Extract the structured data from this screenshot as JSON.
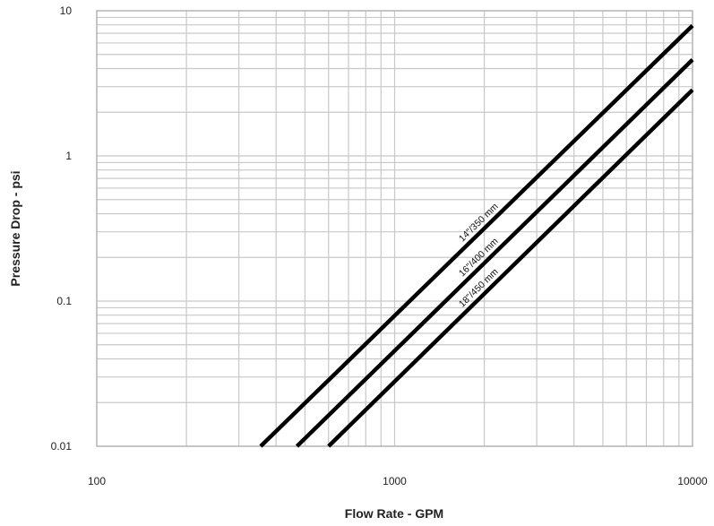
{
  "chart_data": {
    "type": "line",
    "x_scale": "log",
    "y_scale": "log",
    "xlim": [
      100,
      10000
    ],
    "ylim": [
      0.01,
      10
    ],
    "xlabel": "Flow Rate - GPM",
    "ylabel": "Pressure Drop - psi",
    "x_ticks": [
      "100",
      "1000",
      "10000"
    ],
    "y_ticks": [
      "0.01",
      "0.1",
      "1",
      "10"
    ],
    "grid": true,
    "line_color": "#000000",
    "grid_color": "#c8c8c8",
    "series": [
      {
        "name": "14\"/350 mm",
        "x": [
          355,
          10000
        ],
        "y": [
          0.01,
          7.9
        ]
      },
      {
        "name": "16\"/400 mm",
        "x": [
          470,
          10000
        ],
        "y": [
          0.01,
          4.6
        ]
      },
      {
        "name": "18\"/450 mm",
        "x": [
          600,
          10000
        ],
        "y": [
          0.01,
          2.85
        ]
      }
    ]
  }
}
